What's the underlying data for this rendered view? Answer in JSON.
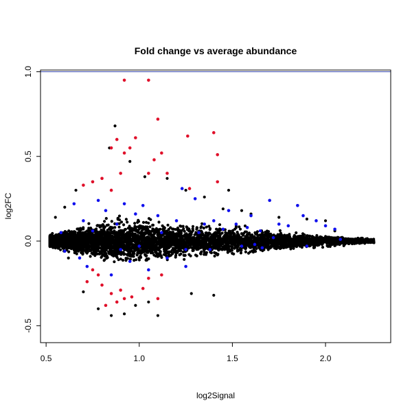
{
  "chart_data": {
    "type": "scatter",
    "title": "Fold change vs average abundance",
    "xlabel": "log2Signal",
    "ylabel": "log2FC",
    "xlim": [
      0.47,
      2.35
    ],
    "ylim": [
      -0.6,
      1.01
    ],
    "x_ticks": [
      0.5,
      1.0,
      1.5,
      2.0
    ],
    "x_tick_labels": [
      "0.5",
      "1.0",
      "1.5",
      "2.0"
    ],
    "y_ticks": [
      -0.5,
      0.0,
      0.5,
      1.0
    ],
    "y_tick_labels": [
      "-0.5",
      "0.0",
      "0.5",
      "1.0"
    ],
    "grid": false,
    "reference_lines": [
      {
        "axis": "y",
        "value": 1.0,
        "color": "#3344aa"
      }
    ],
    "cloud": {
      "color": "#000000",
      "description_points": [
        [
          0.53,
          0.01
        ],
        [
          0.55,
          0.14
        ],
        [
          0.6,
          0.2
        ],
        [
          0.62,
          -0.1
        ],
        [
          0.66,
          0.3
        ],
        [
          0.7,
          -0.3
        ],
        [
          0.75,
          0.35
        ],
        [
          0.78,
          -0.4
        ],
        [
          0.84,
          0.55
        ],
        [
          0.85,
          -0.44
        ],
        [
          0.87,
          0.68
        ],
        [
          0.92,
          -0.43
        ],
        [
          0.95,
          0.47
        ],
        [
          0.98,
          -0.38
        ],
        [
          1.03,
          0.38
        ],
        [
          1.05,
          -0.36
        ],
        [
          1.1,
          -0.44
        ],
        [
          1.15,
          0.37
        ],
        [
          1.25,
          0.3
        ],
        [
          1.28,
          -0.31
        ],
        [
          1.35,
          0.26
        ],
        [
          1.4,
          -0.32
        ],
        [
          1.45,
          0.19
        ],
        [
          1.48,
          0.3
        ],
        [
          1.55,
          0.18
        ],
        [
          1.6,
          0.16
        ],
        [
          1.7,
          0.24
        ],
        [
          1.75,
          0.14
        ],
        [
          1.85,
          0.21
        ],
        [
          1.9,
          0.13
        ],
        [
          2.0,
          0.12
        ],
        [
          2.05,
          0.06
        ],
        [
          2.1,
          0.01
        ],
        [
          2.2,
          0.0
        ],
        [
          2.26,
          -0.01
        ]
      ]
    },
    "series": [
      {
        "color": "#1010ee",
        "points": [
          [
            0.58,
            0.05
          ],
          [
            0.6,
            -0.06
          ],
          [
            0.65,
            0.22
          ],
          [
            0.7,
            0.12
          ],
          [
            0.72,
            -0.15
          ],
          [
            0.78,
            0.24
          ],
          [
            0.82,
            0.18
          ],
          [
            0.85,
            -0.2
          ],
          [
            0.88,
            0.1
          ],
          [
            0.92,
            0.22
          ],
          [
            0.95,
            -0.12
          ],
          [
            0.98,
            0.16
          ],
          [
            1.02,
            0.21
          ],
          [
            1.05,
            -0.17
          ],
          [
            1.1,
            0.15
          ],
          [
            1.15,
            -0.1
          ],
          [
            1.2,
            0.12
          ],
          [
            1.23,
            0.31
          ],
          [
            1.25,
            -0.15
          ],
          [
            1.3,
            0.25
          ],
          [
            1.35,
            0.1
          ],
          [
            1.4,
            0.12
          ],
          [
            1.45,
            0.07
          ],
          [
            1.48,
            0.18
          ],
          [
            1.52,
            0.1
          ],
          [
            1.58,
            0.08
          ],
          [
            1.62,
            -0.02
          ],
          [
            1.65,
            0.06
          ],
          [
            1.7,
            0.24
          ],
          [
            1.75,
            0.1
          ],
          [
            1.8,
            0.09
          ],
          [
            1.85,
            0.21
          ],
          [
            1.88,
            0.15
          ],
          [
            1.9,
            -0.03
          ],
          [
            1.95,
            0.12
          ],
          [
            2.0,
            0.09
          ],
          [
            2.05,
            0.07
          ],
          [
            2.08,
            0.01
          ],
          [
            1.38,
            -0.05
          ],
          [
            1.55,
            -0.03
          ],
          [
            1.25,
            -0.05
          ],
          [
            1.0,
            -0.03
          ],
          [
            1.32,
            0.05
          ],
          [
            1.72,
            0.02
          ],
          [
            1.66,
            -0.04
          ],
          [
            0.9,
            -0.05
          ],
          [
            0.75,
            0.06
          ],
          [
            0.68,
            -0.1
          ],
          [
            1.6,
            0.15
          ],
          [
            1.12,
            0.05
          ]
        ]
      },
      {
        "color": "#e0102a",
        "points": [
          [
            0.92,
            0.95
          ],
          [
            1.05,
            0.95
          ],
          [
            1.1,
            0.72
          ],
          [
            1.4,
            0.64
          ],
          [
            1.26,
            0.62
          ],
          [
            0.88,
            0.6
          ],
          [
            0.98,
            0.61
          ],
          [
            1.42,
            0.51
          ],
          [
            0.95,
            0.55
          ],
          [
            0.92,
            0.52
          ],
          [
            0.85,
            0.55
          ],
          [
            1.12,
            0.52
          ],
          [
            1.08,
            0.48
          ],
          [
            1.05,
            0.4
          ],
          [
            0.9,
            0.4
          ],
          [
            0.8,
            0.37
          ],
          [
            1.15,
            0.4
          ],
          [
            1.42,
            0.35
          ],
          [
            0.7,
            0.33
          ],
          [
            0.75,
            0.35
          ],
          [
            1.27,
            0.31
          ],
          [
            0.85,
            0.3
          ],
          [
            0.72,
            -0.24
          ],
          [
            0.78,
            -0.2
          ],
          [
            0.8,
            -0.26
          ],
          [
            0.85,
            -0.31
          ],
          [
            0.88,
            -0.36
          ],
          [
            0.82,
            -0.38
          ],
          [
            0.92,
            -0.34
          ],
          [
            0.96,
            -0.33
          ],
          [
            1.02,
            -0.28
          ],
          [
            1.1,
            -0.34
          ],
          [
            1.05,
            -0.22
          ],
          [
            0.9,
            -0.29
          ],
          [
            1.12,
            -0.2
          ],
          [
            0.75,
            -0.17
          ]
        ]
      }
    ]
  }
}
